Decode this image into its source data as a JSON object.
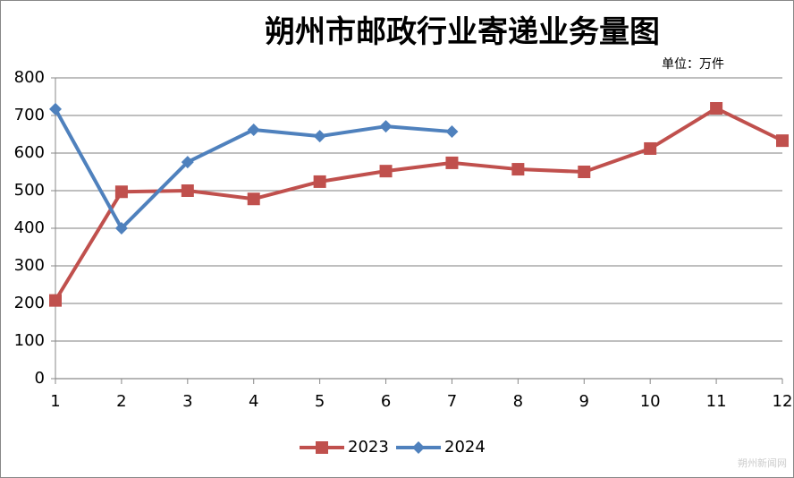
{
  "chart_data": {
    "type": "line",
    "title": "朔州市邮政行业寄递业务量图",
    "subtitle": "单位：万件",
    "x": [
      1,
      2,
      3,
      4,
      5,
      6,
      7,
      8,
      9,
      10,
      11,
      12
    ],
    "xlim": [
      1,
      12
    ],
    "xticks": [
      1,
      2,
      3,
      4,
      5,
      6,
      7,
      8,
      9,
      10,
      11,
      12
    ],
    "ylim": [
      0,
      800
    ],
    "yticks": [
      0,
      100,
      200,
      300,
      400,
      500,
      600,
      700,
      800
    ],
    "grid": true,
    "legend": "bottom",
    "series": [
      {
        "name": "2023",
        "color": "#c0504d",
        "marker": "square",
        "values": [
          208,
          497,
          500,
          478,
          524,
          552,
          574,
          557,
          550,
          612,
          719,
          633
        ]
      },
      {
        "name": "2024",
        "color": "#4f81bd",
        "marker": "diamond",
        "values": [
          717,
          400,
          576,
          662,
          645,
          671,
          657,
          null,
          null,
          null,
          null,
          null
        ]
      }
    ],
    "watermark": "朔州新闻网"
  }
}
